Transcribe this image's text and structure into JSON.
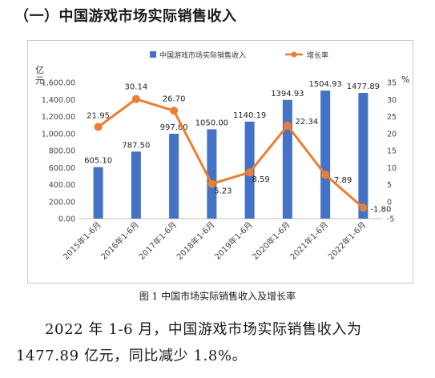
{
  "heading": "（一）中国游戏市场实际销售收入",
  "caption": "图 1 中国市场实际销售收入及增长率",
  "paragraph": "2022 年 1-6 月，中国游戏市场实际销售收入为 1477.89 亿元，同比减少 1.8%。",
  "chart_data": {
    "type": "bar",
    "categories": [
      "2015年1-6月",
      "2016年1-6月",
      "2017年1-6月",
      "2018年1-6月",
      "2019年1-6月",
      "2020年1-6月",
      "2021年1-6月",
      "2022年1-6月"
    ],
    "series": [
      {
        "name": "中国游戏市场实际销售收入",
        "type": "bar",
        "axis": "left",
        "color": "#4472C4",
        "values": [
          605.1,
          787.5,
          997.8,
          1050.0,
          1140.19,
          1394.93,
          1504.93,
          1477.89
        ],
        "labels": [
          "605.10",
          "787.50",
          "997.80",
          "1050.00",
          "1140.19",
          "1394.93",
          "1504.93",
          "1477.89"
        ]
      },
      {
        "name": "增长率",
        "type": "line",
        "axis": "right",
        "color": "#ED7D31",
        "values": [
          21.95,
          30.14,
          26.7,
          5.23,
          8.59,
          22.34,
          7.89,
          -1.8
        ],
        "labels": [
          "21.95",
          "30.14",
          "26.70",
          "5.23",
          "8.59",
          "22.34",
          "7.89",
          "-1.80"
        ]
      }
    ],
    "ylabel_left": "亿元",
    "ylabel_right": "%",
    "ylim_left": [
      0,
      1600
    ],
    "yticks_left": [
      "0.00",
      "200.00",
      "400.00",
      "600.00",
      "800.00",
      "1,000.00",
      "1,200.00",
      "1,400.00",
      "1,600.00"
    ],
    "ylim_right": [
      -5,
      35
    ],
    "yticks_right": [
      "-5",
      "0",
      "5",
      "10",
      "15",
      "20",
      "25",
      "30",
      "35"
    ],
    "legend_position": "top",
    "grid": false
  }
}
